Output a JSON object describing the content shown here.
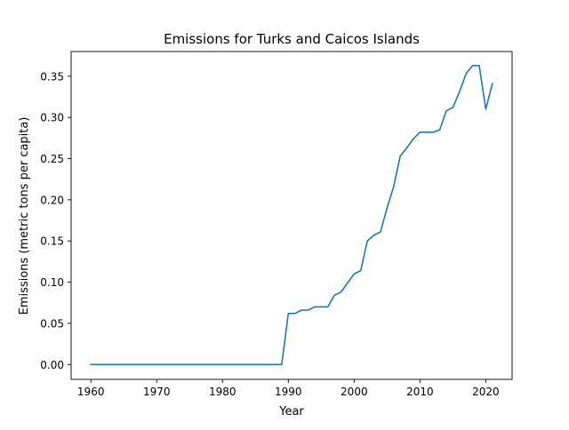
{
  "chart_data": {
    "type": "line",
    "title": "Emissions for Turks and Caicos Islands",
    "xlabel": "Year",
    "ylabel": "Emissions (metric tons per capita)",
    "xlim": [
      1957,
      2024
    ],
    "ylim": [
      -0.018,
      0.38
    ],
    "xticks": [
      1960,
      1970,
      1980,
      1990,
      2000,
      2010,
      2020
    ],
    "yticks": [
      0.0,
      0.05,
      0.1,
      0.15,
      0.2,
      0.25,
      0.3,
      0.35
    ],
    "ytick_labels": [
      "0.00",
      "0.05",
      "0.10",
      "0.15",
      "0.20",
      "0.25",
      "0.30",
      "0.35"
    ],
    "grid": false,
    "line_color": "#1f77b4",
    "series": [
      {
        "x": [
          1960,
          1961,
          1962,
          1963,
          1964,
          1965,
          1966,
          1967,
          1968,
          1969,
          1970,
          1971,
          1972,
          1973,
          1974,
          1975,
          1976,
          1977,
          1978,
          1979,
          1980,
          1981,
          1982,
          1983,
          1984,
          1985,
          1986,
          1987,
          1988,
          1989,
          1990,
          1991,
          1992,
          1993,
          1994,
          1995,
          1996,
          1997,
          1998,
          1999,
          2000,
          2001,
          2002,
          2003,
          2004,
          2005,
          2006,
          2007,
          2008,
          2009,
          2010,
          2011,
          2012,
          2013,
          2014,
          2015,
          2016,
          2017,
          2018,
          2019,
          2020,
          2021
        ],
        "values": [
          0,
          0,
          0,
          0,
          0,
          0,
          0,
          0,
          0,
          0,
          0,
          0,
          0,
          0,
          0,
          0,
          0,
          0,
          0,
          0,
          0,
          0,
          0,
          0,
          0,
          0,
          0,
          0,
          0,
          0,
          0.062,
          0.062,
          0.066,
          0.066,
          0.07,
          0.07,
          0.07,
          0.084,
          0.088,
          0.099,
          0.11,
          0.114,
          0.15,
          0.157,
          0.161,
          0.19,
          0.216,
          0.253,
          0.263,
          0.274,
          0.282,
          0.282,
          0.282,
          0.285,
          0.308,
          0.312,
          0.331,
          0.353,
          0.363,
          0.363,
          0.31,
          0.341
        ]
      }
    ]
  }
}
